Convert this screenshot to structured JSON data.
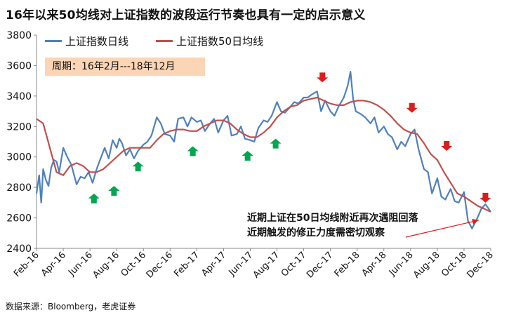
{
  "title": "16年以来50均线对上证指数的波段运行节奏也具有一定的启示意义",
  "source": "数据来源：Bloomberg，老虎证券",
  "period_label": "周期：16年2月---18年12月",
  "annotation": [
    "近期上证在50日均线附近再次遇阻回落",
    "近期触发的修正力度需密切观察"
  ],
  "colors": {
    "index": "#4f81bd",
    "ma50": "#c0504d",
    "up_arrow": "#00a650",
    "down_arrow": "#e01b1b",
    "box": "#fbd5b5"
  },
  "chart_data": {
    "type": "line",
    "title": "16年以来50均线对上证指数的波段运行节奏也具有一定的启示意义",
    "xlabel": "",
    "ylabel": "",
    "ylim": [
      2400,
      3800
    ],
    "yticks": [
      2400,
      2600,
      2800,
      3000,
      3200,
      3400,
      3600,
      3800
    ],
    "xlim": [
      0,
      34
    ],
    "xtick_labels": [
      "Feb-16",
      "Apr-16",
      "Jun-16",
      "Aug-16",
      "Oct-16",
      "Dec-16",
      "Feb-17",
      "Apr-17",
      "Jun-17",
      "Aug-17",
      "Oct-17",
      "Dec-17",
      "Feb-18",
      "Apr-18",
      "Jun-18",
      "Aug-18",
      "Oct-18",
      "Dec-18"
    ],
    "xtick_positions": [
      0,
      2,
      4,
      6,
      8,
      10,
      12,
      14,
      16,
      18,
      20,
      22,
      24,
      26,
      28,
      30,
      32,
      34
    ],
    "legend": [
      "上证指数日线",
      "上证指数50日均线"
    ],
    "legend_position": "top-left",
    "series": [
      {
        "name": "上证指数日线",
        "x": [
          0,
          0.2,
          0.35,
          0.5,
          0.7,
          0.9,
          1.1,
          1.3,
          1.5,
          1.7,
          2.0,
          2.3,
          2.6,
          3.0,
          3.3,
          3.6,
          3.9,
          4.2,
          4.5,
          4.8,
          5.1,
          5.4,
          5.7,
          6.0,
          6.2,
          6.4,
          6.7,
          7.0,
          7.3,
          7.6,
          8.0,
          8.3,
          8.6,
          9.0,
          9.3,
          9.6,
          10.0,
          10.3,
          10.6,
          11.0,
          11.3,
          11.6,
          12.0,
          12.3,
          12.6,
          13.0,
          13.3,
          13.6,
          14.0,
          14.3,
          14.6,
          15.0,
          15.3,
          15.6,
          16.0,
          16.3,
          16.6,
          17.0,
          17.3,
          17.6,
          18.0,
          18.3,
          18.6,
          19.0,
          19.3,
          19.6,
          20.0,
          20.3,
          20.6,
          21.0,
          21.3,
          21.6,
          22.0,
          22.3,
          22.6,
          23.0,
          23.3,
          23.5,
          23.7,
          23.9,
          24.1,
          24.3,
          24.6,
          25.0,
          25.3,
          25.6,
          26.0,
          26.3,
          26.6,
          27.0,
          27.3,
          27.6,
          28.0,
          28.3,
          28.6,
          29.0,
          29.3,
          29.6,
          30.0,
          30.3,
          30.6,
          31.0,
          31.3,
          31.6,
          32.0,
          32.3,
          32.6,
          33.0,
          33.3,
          33.6,
          34.0
        ],
        "values": [
          2760,
          2880,
          2700,
          2920,
          2850,
          2810,
          2930,
          2980,
          2970,
          2900,
          3060,
          3000,
          2950,
          2820,
          2870,
          2860,
          2900,
          2830,
          2920,
          2990,
          3060,
          2990,
          3110,
          3060,
          3120,
          3090,
          3010,
          3050,
          2990,
          3040,
          3080,
          3100,
          3140,
          3260,
          3220,
          3150,
          3140,
          3100,
          3250,
          3260,
          3200,
          3260,
          3230,
          3240,
          3170,
          3220,
          3250,
          3160,
          3240,
          3270,
          3140,
          3150,
          3200,
          3120,
          3110,
          3100,
          3190,
          3240,
          3230,
          3270,
          3360,
          3300,
          3290,
          3330,
          3360,
          3350,
          3390,
          3390,
          3410,
          3430,
          3300,
          3370,
          3300,
          3270,
          3330,
          3390,
          3470,
          3560,
          3380,
          3300,
          3290,
          3280,
          3260,
          3220,
          3260,
          3160,
          3200,
          3150,
          3130,
          3050,
          3100,
          3070,
          3150,
          3180,
          3050,
          2920,
          2900,
          2760,
          2860,
          2740,
          2720,
          2790,
          2710,
          2700,
          2770,
          2580,
          2530,
          2600,
          2660,
          2690,
          2640
        ]
      },
      {
        "name": "上证指数50日均线",
        "x": [
          0,
          0.5,
          1.0,
          1.5,
          2.0,
          2.5,
          3.0,
          3.5,
          4.0,
          4.5,
          5.0,
          5.5,
          6.0,
          6.5,
          7.0,
          7.5,
          8.0,
          8.5,
          9.0,
          9.5,
          10.0,
          10.5,
          11.0,
          11.5,
          12.0,
          12.5,
          13.0,
          13.5,
          14.0,
          14.5,
          15.0,
          15.5,
          16.0,
          16.5,
          17.0,
          17.5,
          18.0,
          18.5,
          19.0,
          19.5,
          20.0,
          20.5,
          21.0,
          21.5,
          22.0,
          22.5,
          23.0,
          23.5,
          24.0,
          24.5,
          25.0,
          25.5,
          26.0,
          26.5,
          27.0,
          27.5,
          28.0,
          28.5,
          29.0,
          29.5,
          30.0,
          30.5,
          31.0,
          31.5,
          32.0,
          32.5,
          33.0,
          33.5,
          34.0
        ],
        "values": [
          3250,
          3220,
          3060,
          2900,
          2880,
          2940,
          2960,
          2940,
          2900,
          2900,
          2920,
          2960,
          3000,
          3040,
          3060,
          3060,
          3060,
          3060,
          3110,
          3150,
          3170,
          3180,
          3180,
          3170,
          3170,
          3200,
          3220,
          3240,
          3240,
          3220,
          3180,
          3150,
          3130,
          3130,
          3160,
          3200,
          3260,
          3300,
          3330,
          3340,
          3370,
          3380,
          3390,
          3370,
          3350,
          3340,
          3340,
          3360,
          3370,
          3370,
          3360,
          3340,
          3310,
          3270,
          3220,
          3180,
          3160,
          3150,
          3090,
          3020,
          2980,
          2900,
          2830,
          2760,
          2740,
          2710,
          2680,
          2660,
          2640
        ]
      }
    ],
    "markers": {
      "up_arrows": [
        [
          4.3,
          2760
        ],
        [
          5.8,
          2810
        ],
        [
          7.6,
          2970
        ],
        [
          11.7,
          3070
        ],
        [
          15.8,
          3040
        ],
        [
          17.9,
          3120
        ]
      ],
      "down_arrows": [
        [
          21.4,
          3490
        ],
        [
          28.1,
          3290
        ],
        [
          30.7,
          3040
        ],
        [
          33.6,
          2700
        ]
      ]
    }
  }
}
